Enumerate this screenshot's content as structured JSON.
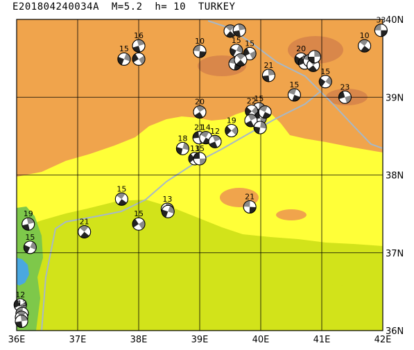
{
  "header": {
    "title": "E201804240034A  M=5.2  h= 10  TURKEY"
  },
  "colors": {
    "elev_high": "#f0a44c",
    "elev_high_dark": "#d9874a",
    "elev_mid": "#ffff38",
    "elev_low": "#d2e31a",
    "elev_lowest": "#a8d82a",
    "elev_coast": "#7ec84a",
    "water": "#4aa8e0",
    "fault": "#a6b8c8",
    "grid": "#000000"
  },
  "map": {
    "lon_range": [
      36,
      42
    ],
    "lat_range": [
      36,
      40
    ],
    "lon_labels": [
      {
        "lon": 36,
        "label": "36E"
      },
      {
        "lon": 37,
        "label": "37E"
      },
      {
        "lon": 38,
        "label": "38E"
      },
      {
        "lon": 39,
        "label": "39E"
      },
      {
        "lon": 40,
        "label": "40E"
      },
      {
        "lon": 41,
        "label": "41E"
      },
      {
        "lon": 42,
        "label": "42E"
      }
    ],
    "lat_labels": [
      {
        "lat": 40,
        "label": "40N"
      },
      {
        "lat": 39,
        "label": "39N"
      },
      {
        "lat": 38,
        "label": "38N"
      },
      {
        "lat": 37,
        "label": "37N"
      },
      {
        "lat": 36,
        "label": "36N"
      }
    ]
  },
  "events": [
    {
      "lon": 41.97,
      "lat": 39.86,
      "depth": "33"
    },
    {
      "lon": 41.7,
      "lat": 39.66,
      "depth": "10"
    },
    {
      "lon": 38.0,
      "lat": 39.66,
      "depth": "16"
    },
    {
      "lon": 37.76,
      "lat": 39.49,
      "depth": "15"
    },
    {
      "lon": 38.0,
      "lat": 39.49,
      "depth": ""
    },
    {
      "lon": 39.0,
      "lat": 39.59,
      "depth": "10"
    },
    {
      "lon": 39.5,
      "lat": 39.85,
      "depth": ""
    },
    {
      "lon": 39.65,
      "lat": 39.86,
      "depth": ""
    },
    {
      "lon": 39.6,
      "lat": 39.6,
      "depth": "15"
    },
    {
      "lon": 39.82,
      "lat": 39.56,
      "depth": "15"
    },
    {
      "lon": 39.58,
      "lat": 39.43,
      "depth": ""
    },
    {
      "lon": 39.67,
      "lat": 39.48,
      "depth": ""
    },
    {
      "lon": 40.13,
      "lat": 39.28,
      "depth": "21"
    },
    {
      "lon": 40.66,
      "lat": 39.49,
      "depth": "20"
    },
    {
      "lon": 40.72,
      "lat": 39.44,
      "depth": ""
    },
    {
      "lon": 40.8,
      "lat": 39.47,
      "depth": ""
    },
    {
      "lon": 40.86,
      "lat": 39.41,
      "depth": ""
    },
    {
      "lon": 40.88,
      "lat": 39.52,
      "depth": ""
    },
    {
      "lon": 41.06,
      "lat": 39.2,
      "depth": "15"
    },
    {
      "lon": 41.38,
      "lat": 39.0,
      "depth": "23"
    },
    {
      "lon": 40.55,
      "lat": 39.03,
      "depth": "15"
    },
    {
      "lon": 39.0,
      "lat": 38.81,
      "depth": "20"
    },
    {
      "lon": 39.97,
      "lat": 38.85,
      "depth": "15"
    },
    {
      "lon": 39.85,
      "lat": 38.82,
      "depth": "22"
    },
    {
      "lon": 39.99,
      "lat": 38.73,
      "depth": ""
    },
    {
      "lon": 40.07,
      "lat": 38.81,
      "depth": ""
    },
    {
      "lon": 39.84,
      "lat": 38.7,
      "depth": ""
    },
    {
      "lon": 39.99,
      "lat": 38.61,
      "depth": ""
    },
    {
      "lon": 39.52,
      "lat": 38.57,
      "depth": "19"
    },
    {
      "lon": 38.99,
      "lat": 38.48,
      "depth": "21"
    },
    {
      "lon": 39.1,
      "lat": 38.48,
      "depth": "14"
    },
    {
      "lon": 39.25,
      "lat": 38.43,
      "depth": "12"
    },
    {
      "lon": 38.72,
      "lat": 38.34,
      "depth": "18"
    },
    {
      "lon": 38.92,
      "lat": 38.21,
      "depth": "13"
    },
    {
      "lon": 39.0,
      "lat": 38.21,
      "depth": "15"
    },
    {
      "lon": 37.72,
      "lat": 37.69,
      "depth": "15"
    },
    {
      "lon": 38.47,
      "lat": 37.56,
      "depth": "13"
    },
    {
      "lon": 38.48,
      "lat": 37.53,
      "depth": ""
    },
    {
      "lon": 38.0,
      "lat": 37.37,
      "depth": "15"
    },
    {
      "lon": 39.82,
      "lat": 37.59,
      "depth": "21"
    },
    {
      "lon": 37.11,
      "lat": 37.27,
      "depth": "21"
    },
    {
      "lon": 36.19,
      "lat": 37.37,
      "depth": "19"
    },
    {
      "lon": 36.22,
      "lat": 37.07,
      "depth": "15"
    },
    {
      "lon": 36.06,
      "lat": 36.33,
      "depth": "12"
    },
    {
      "lon": 36.09,
      "lat": 36.22,
      "depth": "13"
    },
    {
      "lon": 36.08,
      "lat": 36.17,
      "depth": ""
    },
    {
      "lon": 36.08,
      "lat": 36.12,
      "depth": ""
    }
  ]
}
